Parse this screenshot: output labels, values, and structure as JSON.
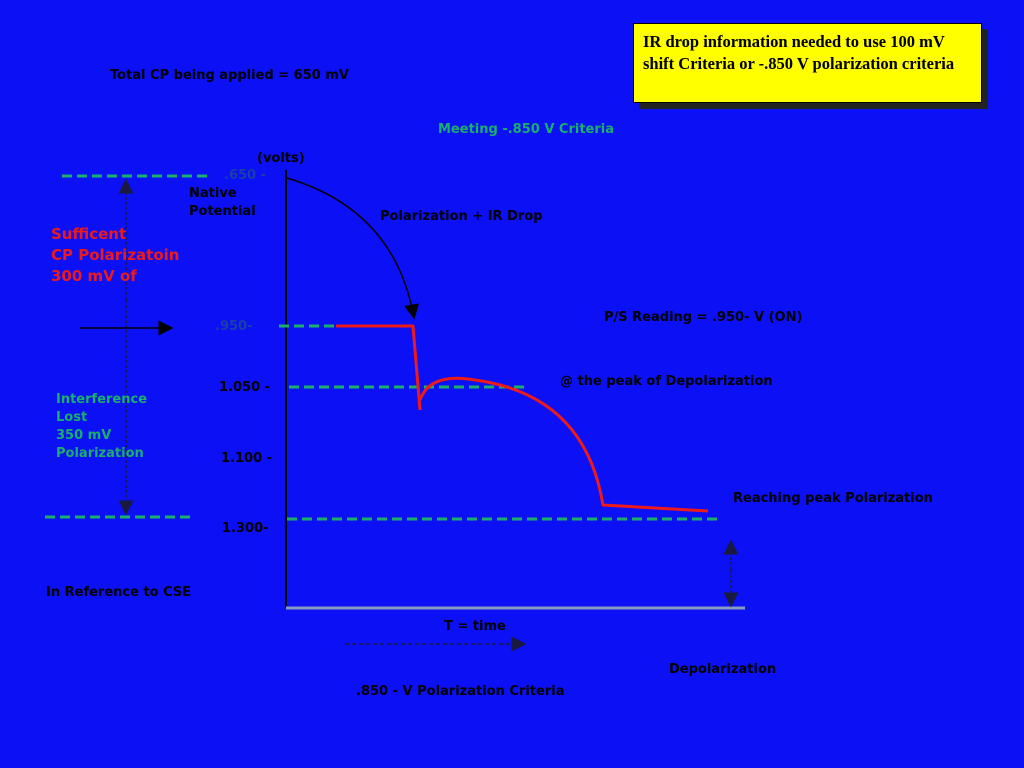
{
  "callout_note": "IR drop information needed to use 100 mV shift Criteria or -.850 V polarization criteria",
  "labels": {
    "total_cp": "Total CP being applied = 650 mV",
    "meeting_criteria": "Meeting -.850 V Criteria",
    "volts": "(volts)",
    "native_potential": "Native\nPotential",
    "polarization_ir_drop": "Polarization + IR Drop",
    "sufficient_cp": "Sufficent\nCP Polarizatoin\n300 mV of",
    "ps_reading": "P/S Reading = .950- V (ON)",
    "peak_depolarization": "@ the peak of Depolarization",
    "interference_lost": "Interference\nLost\n350 mV\nPolarization",
    "reaching_peak": "Reaching peak Polarization",
    "reference_cse": "In Reference to CSE",
    "time": "T = time",
    "depolarization": "Depolarization",
    "criteria_bottom": ".850 - V Polarization Criteria"
  },
  "axis_ticks": [
    ".650 -",
    ".950-",
    "1.050 -",
    "1.100 -",
    "1.300-"
  ],
  "colors": {
    "background": "#0b10f5",
    "curve": "#ee1a1a",
    "dashed": "#19b06a",
    "note_fill": "#ffff00",
    "text": "#000000"
  }
}
